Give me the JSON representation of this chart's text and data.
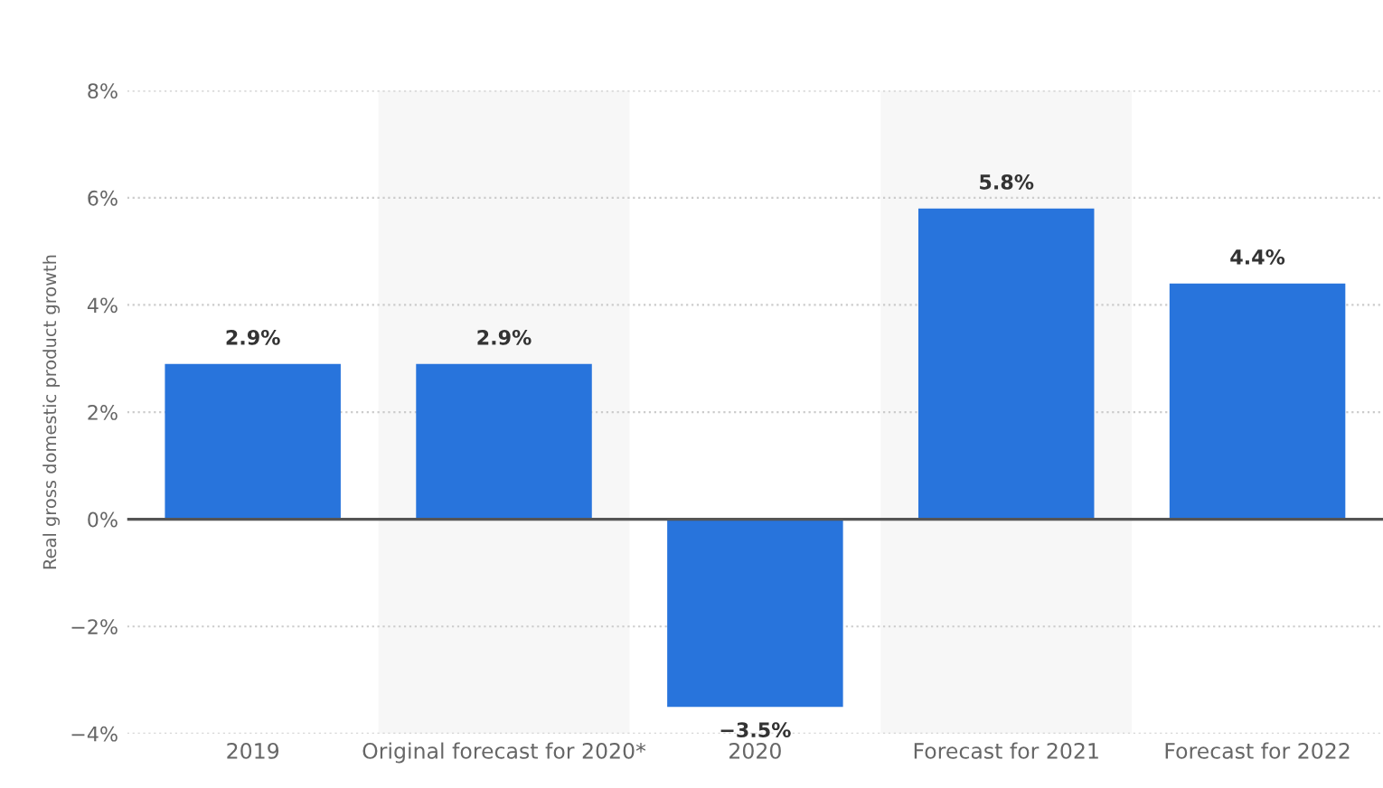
{
  "chart_data": {
    "type": "bar",
    "ylabel": "Real gross domestic product growth",
    "categories": [
      "2019",
      "Original forecast for 2020*",
      "2020",
      "Forecast for 2021",
      "Forecast for 2022"
    ],
    "values": [
      2.9,
      2.9,
      -3.5,
      5.8,
      4.4
    ],
    "value_labels": [
      "2.9%",
      "2.9%",
      "−3.5%",
      "5.8%",
      "4.4%"
    ],
    "color": "#2874dc",
    "ylim": [
      -4,
      8
    ],
    "yticks": [
      {
        "value": -4,
        "label": "−4%"
      },
      {
        "value": -2,
        "label": "−2%"
      },
      {
        "value": 0,
        "label": "0%"
      },
      {
        "value": 2,
        "label": "2%"
      },
      {
        "value": 4,
        "label": "4%"
      },
      {
        "value": 6,
        "label": "6%"
      },
      {
        "value": 8,
        "label": "8%"
      }
    ],
    "grid": "y",
    "bands": [
      {
        "axis": "x",
        "from": "Original forecast for 2020*",
        "to": "Original forecast for 2020*",
        "color": "#f7f7f7"
      },
      {
        "axis": "x",
        "from": "Forecast for 2021",
        "to": "Forecast for 2021",
        "color": "#f7f7f7"
      }
    ]
  }
}
